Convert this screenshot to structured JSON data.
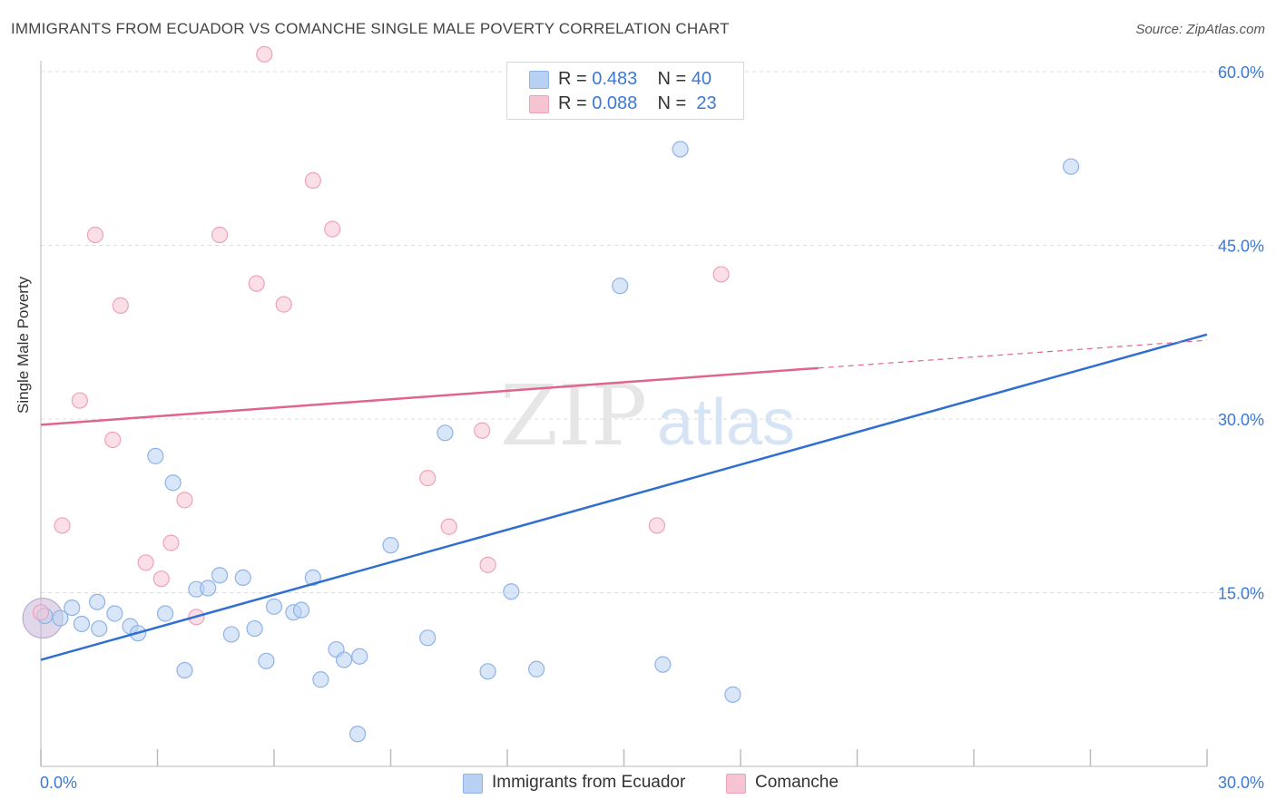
{
  "header": {
    "title": "IMMIGRANTS FROM ECUADOR VS COMANCHE SINGLE MALE POVERTY CORRELATION CHART",
    "source": "Source: ZipAtlas.com"
  },
  "watermark": {
    "zip": "ZIP",
    "atlas": "atlas"
  },
  "legend_top": {
    "rows": [
      {
        "r_label": "R =",
        "r_value": "0.483",
        "n_label": "N =",
        "n_value": "40"
      },
      {
        "r_label": "R =",
        "r_value": "0.088",
        "n_label": "N =",
        "n_value": "23"
      }
    ]
  },
  "legend_bottom": {
    "items": [
      {
        "label": "Immigrants from Ecuador"
      },
      {
        "label": "Comanche"
      }
    ]
  },
  "colors": {
    "blue_fill": "#b8d1f3",
    "blue_stroke": "#8fb3e8",
    "blue_line": "#2f6fd0",
    "pink_fill": "#f6c4d3",
    "pink_stroke": "#eea2b9",
    "pink_line": "#e0658c",
    "tick_label": "#3b78d8",
    "grid": "#dcdcdc"
  },
  "chart_data": {
    "type": "scatter",
    "title": "IMMIGRANTS FROM ECUADOR VS COMANCHE SINGLE MALE POVERTY CORRELATION CHART",
    "xlabel": "",
    "ylabel": "Single Male Poverty",
    "xlim": [
      0,
      30
    ],
    "ylim": [
      0,
      60
    ],
    "x_tick_labels": [
      "0.0%",
      "30.0%"
    ],
    "y_ticks": [
      15,
      30,
      45,
      60
    ],
    "y_tick_labels": [
      "15.0%",
      "30.0%",
      "45.0%",
      "60.0%"
    ],
    "grid": true,
    "legend_position": "top-center",
    "series": [
      {
        "name": "Immigrants from Ecuador",
        "points": [
          [
            0.1,
            13.0
          ],
          [
            0.5,
            12.8
          ],
          [
            0.8,
            13.7
          ],
          [
            1.05,
            12.3
          ],
          [
            1.5,
            11.9
          ],
          [
            1.45,
            14.2
          ],
          [
            1.9,
            13.2
          ],
          [
            2.3,
            12.1
          ],
          [
            2.5,
            11.5
          ],
          [
            2.95,
            26.8
          ],
          [
            3.2,
            13.2
          ],
          [
            3.4,
            24.5
          ],
          [
            3.7,
            8.3
          ],
          [
            4.0,
            15.3
          ],
          [
            4.3,
            15.4
          ],
          [
            4.6,
            16.5
          ],
          [
            4.9,
            11.4
          ],
          [
            5.2,
            16.3
          ],
          [
            5.5,
            11.9
          ],
          [
            5.8,
            9.1
          ],
          [
            6.0,
            13.8
          ],
          [
            6.5,
            13.3
          ],
          [
            6.7,
            13.5
          ],
          [
            7.0,
            16.3
          ],
          [
            7.2,
            7.5
          ],
          [
            7.6,
            10.1
          ],
          [
            7.8,
            9.2
          ],
          [
            8.2,
            9.5
          ],
          [
            8.15,
            2.8
          ],
          [
            9.0,
            19.1
          ],
          [
            9.95,
            11.1
          ],
          [
            10.4,
            28.8
          ],
          [
            11.5,
            8.2
          ],
          [
            12.1,
            15.1
          ],
          [
            12.75,
            8.4
          ],
          [
            14.9,
            41.5
          ],
          [
            16.0,
            8.8
          ],
          [
            16.45,
            53.3
          ],
          [
            17.8,
            6.2
          ],
          [
            26.5,
            51.8
          ]
        ],
        "trend": {
          "x": [
            0,
            30
          ],
          "y": [
            9.2,
            37.3
          ]
        }
      },
      {
        "name": "Comanche",
        "points": [
          [
            0.0,
            13.3
          ],
          [
            0.55,
            20.8
          ],
          [
            1.0,
            31.6
          ],
          [
            1.4,
            45.9
          ],
          [
            1.85,
            28.2
          ],
          [
            2.05,
            39.8
          ],
          [
            2.7,
            17.6
          ],
          [
            3.1,
            16.2
          ],
          [
            3.35,
            19.3
          ],
          [
            3.7,
            23.0
          ],
          [
            4.0,
            12.9
          ],
          [
            4.6,
            45.9
          ],
          [
            5.55,
            41.7
          ],
          [
            5.75,
            61.5
          ],
          [
            6.25,
            39.9
          ],
          [
            7.0,
            50.6
          ],
          [
            7.5,
            46.4
          ],
          [
            9.95,
            24.9
          ],
          [
            10.5,
            20.7
          ],
          [
            11.35,
            29.0
          ],
          [
            11.5,
            17.4
          ],
          [
            15.85,
            20.8
          ],
          [
            17.5,
            42.5
          ]
        ],
        "trend": {
          "x": [
            0,
            20
          ],
          "y": [
            29.5,
            34.4
          ],
          "dashed_to_x": 30,
          "dashed_to_y": 36.8
        }
      }
    ]
  }
}
